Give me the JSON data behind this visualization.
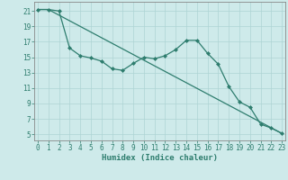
{
  "line1_x": [
    0,
    1,
    2,
    3,
    4,
    5,
    6,
    7,
    8,
    9,
    10,
    11,
    12,
    13,
    14,
    15,
    16,
    17,
    18,
    19,
    20,
    21,
    22,
    23
  ],
  "line1_y": [
    21.2,
    21.2,
    21.0,
    16.2,
    15.2,
    14.9,
    14.5,
    13.5,
    13.3,
    14.2,
    15.0,
    14.8,
    15.2,
    16.0,
    17.2,
    17.2,
    15.5,
    14.1,
    11.2,
    9.2,
    8.5,
    6.3,
    5.8,
    5.1
  ],
  "line2_x": [
    0,
    1,
    23
  ],
  "line2_y": [
    21.2,
    21.2,
    5.1
  ],
  "color": "#2e7d6e",
  "bg_color": "#ceeaea",
  "grid_color": "#aed4d4",
  "xlabel": "Humidex (Indice chaleur)",
  "xlim": [
    -0.3,
    23.3
  ],
  "ylim": [
    4.2,
    22.2
  ],
  "yticks": [
    5,
    7,
    9,
    11,
    13,
    15,
    17,
    19,
    21
  ],
  "xticks": [
    0,
    1,
    2,
    3,
    4,
    5,
    6,
    7,
    8,
    9,
    10,
    11,
    12,
    13,
    14,
    15,
    16,
    17,
    18,
    19,
    20,
    21,
    22,
    23
  ],
  "label_fontsize": 6.5,
  "tick_fontsize": 5.5
}
